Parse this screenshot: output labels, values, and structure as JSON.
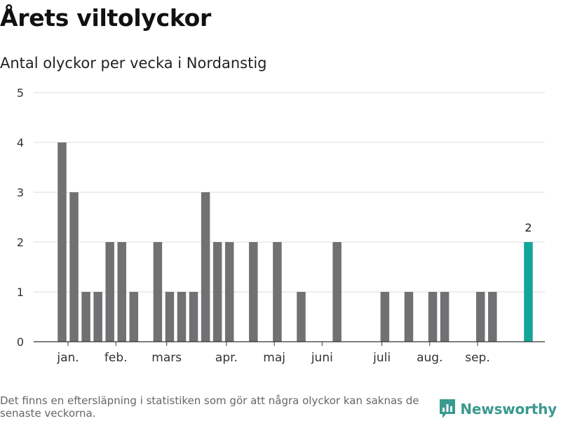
{
  "title": "Årets viltolyckor",
  "subtitle": "Antal olyckor per vecka i Nordanstig",
  "footer_note": "Det finns en eftersläpning i statistiken som gör att några olyckor kan saknas de senaste veckorna.",
  "brand": "Newsworthy",
  "colors": {
    "bar": "#717073",
    "highlight": "#13a59a",
    "grid": "#dddddd",
    "axis": "#333333",
    "brand": "#3a9a8f"
  },
  "chart_data": {
    "type": "bar",
    "title": "Antal olyckor per vecka i Nordanstig",
    "xlabel": "",
    "ylabel": "",
    "ylim": [
      0,
      5
    ],
    "yticks": [
      "0",
      "1",
      "2",
      "3",
      "4",
      "5"
    ],
    "x": [
      1,
      2,
      3,
      4,
      5,
      6,
      7,
      8,
      9,
      10,
      11,
      12,
      13,
      14,
      15,
      16,
      17,
      18,
      19,
      20,
      21,
      22,
      23,
      24,
      25,
      26,
      27,
      28,
      29,
      30,
      31,
      32,
      33,
      34,
      35,
      36,
      37,
      38,
      39,
      40
    ],
    "values": [
      4,
      3,
      1,
      1,
      2,
      2,
      1,
      0,
      2,
      1,
      1,
      1,
      3,
      2,
      2,
      0,
      2,
      0,
      2,
      0,
      1,
      0,
      0,
      2,
      0,
      0,
      0,
      1,
      0,
      1,
      0,
      1,
      1,
      0,
      0,
      1,
      1,
      0,
      0,
      2
    ],
    "month_labels": [
      {
        "label": "jan.",
        "week": 1.5
      },
      {
        "label": "feb.",
        "week": 5.5
      },
      {
        "label": "mars",
        "week": 9.75
      },
      {
        "label": "apr.",
        "week": 14.75
      },
      {
        "label": "maj",
        "week": 18.75
      },
      {
        "label": "juni",
        "week": 22.75
      },
      {
        "label": "juli",
        "week": 27.75
      },
      {
        "label": "aug.",
        "week": 31.75
      },
      {
        "label": "sep.",
        "week": 35.75
      }
    ],
    "highlight_week": 40,
    "annotations": [
      {
        "week": 40,
        "text": "2"
      }
    ],
    "grid": true,
    "legend": "none"
  }
}
